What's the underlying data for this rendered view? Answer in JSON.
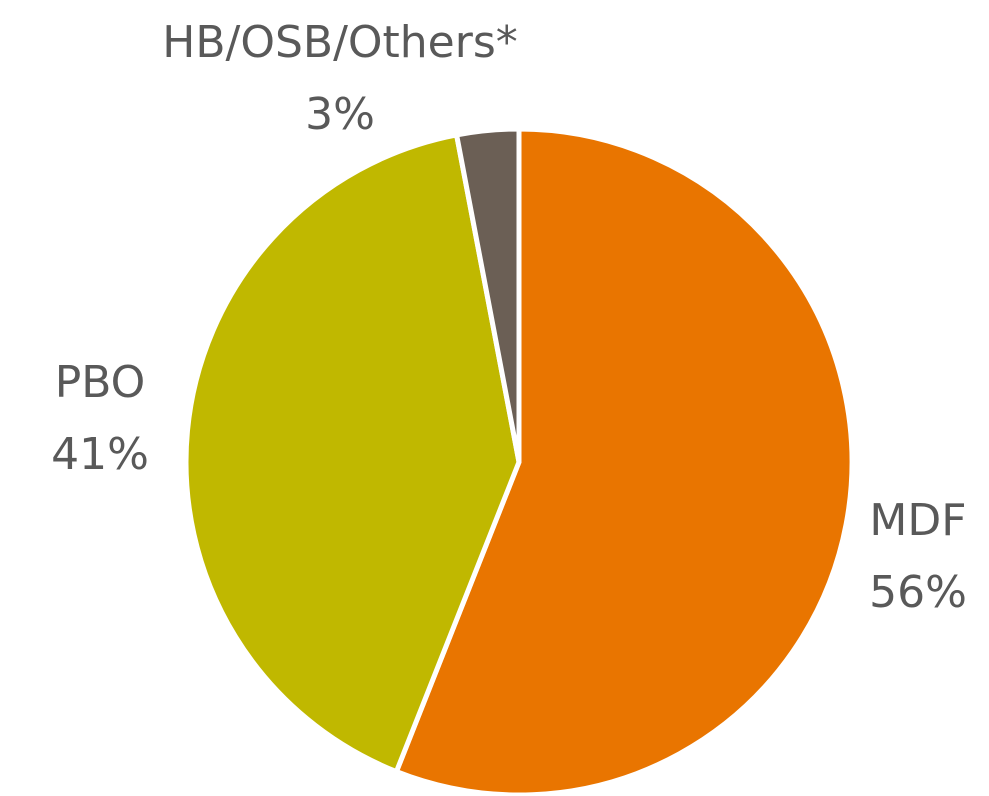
{
  "chart_data": {
    "type": "pie",
    "categories": [
      "MDF",
      "PBO",
      "HB/OSB/Others*"
    ],
    "values": [
      56,
      41,
      3
    ],
    "value_labels": [
      "56%",
      "41%",
      "3%"
    ],
    "colors": [
      "#e97500",
      "#c0b800",
      "#6b5f55"
    ]
  }
}
